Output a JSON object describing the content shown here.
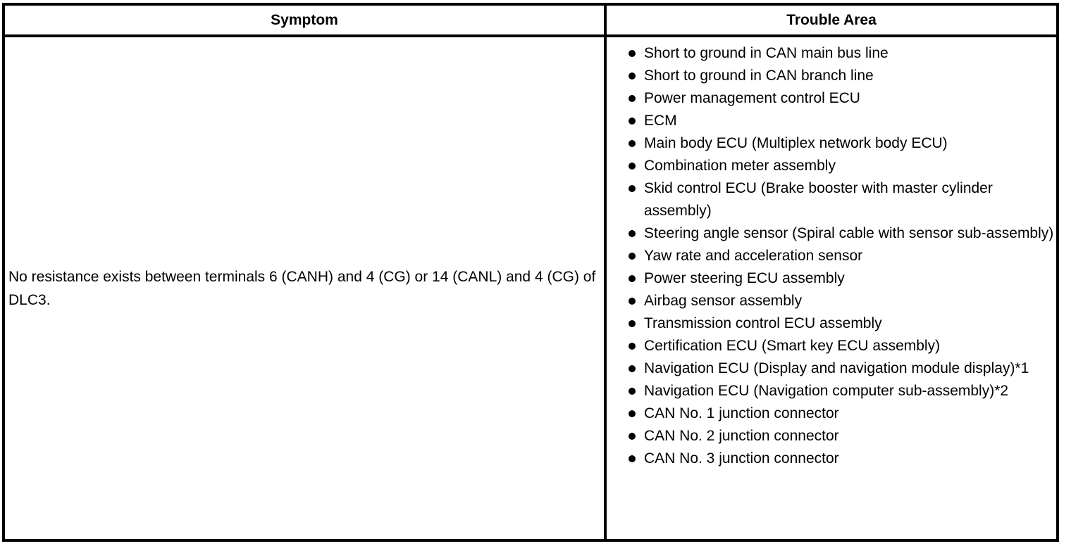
{
  "table": {
    "columns": [
      {
        "header": "Symptom"
      },
      {
        "header": "Trouble Area"
      }
    ],
    "row": {
      "symptom": "No resistance exists between terminals 6 (CANH) and 4 (CG) or 14 (CANL) and 4 (CG) of DLC3.",
      "trouble_areas": [
        "Short to ground in CAN main bus line",
        "Short to ground in CAN branch line",
        "Power management control ECU",
        "ECM",
        "Main body ECU (Multiplex network body ECU)",
        "Combination meter assembly",
        "Skid control ECU (Brake booster with master cylinder assembly)",
        "Steering angle sensor (Spiral cable with sensor sub-assembly)",
        "Yaw rate and acceleration sensor",
        "Power steering ECU assembly",
        "Airbag sensor assembly",
        "Transmission control ECU assembly",
        "Certification ECU (Smart key ECU assembly)",
        "Navigation ECU (Display and navigation module display)*1",
        "Navigation ECU (Navigation computer sub-assembly)*2",
        "CAN No. 1 junction connector",
        "CAN No. 2 junction connector",
        "CAN No. 3 junction connector"
      ]
    },
    "bullet_icon": "filled-circle",
    "colors": {
      "border": "#000000",
      "background": "#ffffff",
      "text": "#000000"
    }
  }
}
